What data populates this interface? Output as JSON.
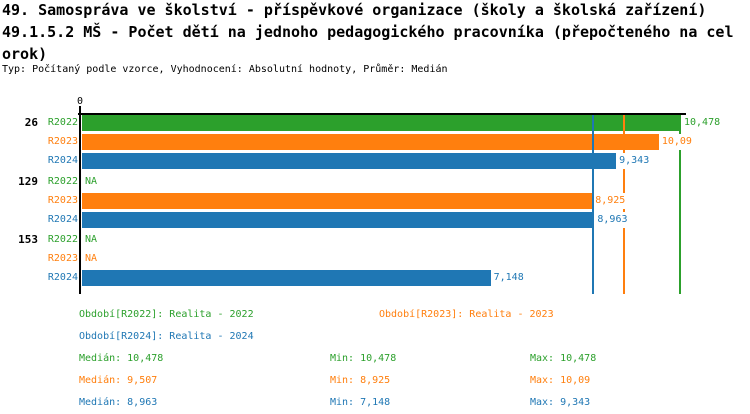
{
  "header": {
    "title_line1": "49. Samospráva ve školství - příspěvkové organizace (školy a školská zařízení)",
    "title_line2": "49.1.5.2 MŠ - Počet dětí na jednoho pedagogického pracovníka (přepočteného na cel",
    "title_line3": "orok)",
    "meta_line": "Typ: Počítaný podle vzorce, Vyhodnocení: Absolutní hodnoty, Průměr: Medián"
  },
  "colors": {
    "R2022": "#2ca02c",
    "R2023": "#ff7f0e",
    "R2024": "#1f77b4",
    "axis": "#000000"
  },
  "chart_data": {
    "type": "bar",
    "orientation": "horizontal",
    "x_axis": {
      "origin_label": "0",
      "max": 10.478
    },
    "na_text": "NA",
    "groups": [
      {
        "id": "26",
        "rows": [
          {
            "period": "R2022",
            "value": 10.478,
            "label": "10,478"
          },
          {
            "period": "R2023",
            "value": 10.09,
            "label": "10,09"
          },
          {
            "period": "R2024",
            "value": 9.343,
            "label": "9,343"
          }
        ]
      },
      {
        "id": "129",
        "rows": [
          {
            "period": "R2022",
            "value": null,
            "label": "NA"
          },
          {
            "period": "R2023",
            "value": 8.925,
            "label": "8,925"
          },
          {
            "period": "R2024",
            "value": 8.963,
            "label": "8,963"
          }
        ]
      },
      {
        "id": "153",
        "rows": [
          {
            "period": "R2022",
            "value": null,
            "label": "NA"
          },
          {
            "period": "R2023",
            "value": null,
            "label": "NA"
          },
          {
            "period": "R2024",
            "value": 7.148,
            "label": "7,148"
          }
        ]
      }
    ],
    "median_lines": [
      {
        "period": "R2022",
        "value": 10.478
      },
      {
        "period": "R2023",
        "value": 9.507
      },
      {
        "period": "R2024",
        "value": 8.963
      }
    ]
  },
  "legend": {
    "rows": [
      [
        {
          "period": "R2022",
          "label": "Období[R2022]: Realita - 2022"
        },
        {
          "period": "R2023",
          "label": "Období[R2023]: Realita - 2023"
        }
      ],
      [
        {
          "period": "R2024",
          "label": "Období[R2024]: Realita - 2024"
        }
      ]
    ]
  },
  "stats": [
    {
      "period": "R2022",
      "median": "Medián: 10,478",
      "min": "Min: 10,478",
      "max": "Max: 10,478"
    },
    {
      "period": "R2023",
      "median": "Medián: 9,507",
      "min": "Min: 8,925",
      "max": "Max: 10,09"
    },
    {
      "period": "R2024",
      "median": "Medián: 8,963",
      "min": "Min: 7,148",
      "max": "Max: 9,343"
    }
  ]
}
